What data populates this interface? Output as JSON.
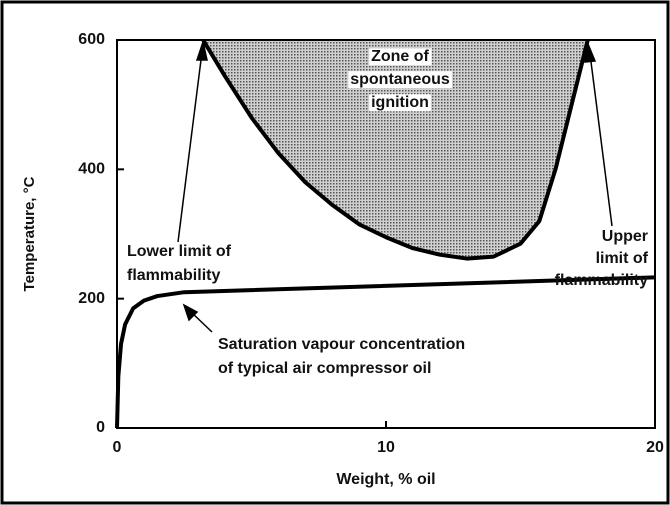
{
  "chart_data": {
    "type": "line",
    "xlabel": "Weight, % oil",
    "ylabel": "Temperature, °C",
    "xlim": [
      0,
      20
    ],
    "xticks": [
      0,
      10,
      20
    ],
    "ylim": [
      0,
      600
    ],
    "yticks": [
      0,
      200,
      400,
      600
    ],
    "series": [
      {
        "color": "#000000",
        "fill": "#8a8a8a",
        "x": [
          3.2,
          4,
          5,
          6,
          7,
          8,
          9,
          10,
          11,
          12,
          13,
          14,
          15,
          15.7,
          16.3,
          16.9,
          17.5
        ],
        "values": [
          600,
          545,
          480,
          425,
          380,
          345,
          315,
          295,
          278,
          268,
          262,
          265,
          285,
          320,
          400,
          500,
          600
        ]
      },
      {
        "color": "#000000",
        "x": [
          0,
          0.05,
          0.15,
          0.3,
          0.6,
          1,
          1.5,
          2.5,
          20
        ],
        "values": [
          0,
          80,
          130,
          160,
          185,
          197,
          204,
          210,
          233
        ]
      }
    ],
    "annotations": [
      {
        "lines": [
          "Zone of",
          "spontaneous",
          "ignition"
        ]
      },
      {
        "lines": [
          "Lower limit of",
          "flammability"
        ]
      },
      {
        "lines": [
          "Upper",
          "limit of",
          "flammability"
        ]
      },
      {
        "lines": [
          "Saturation vapour concentration",
          "of typical air compressor oil"
        ]
      }
    ]
  }
}
